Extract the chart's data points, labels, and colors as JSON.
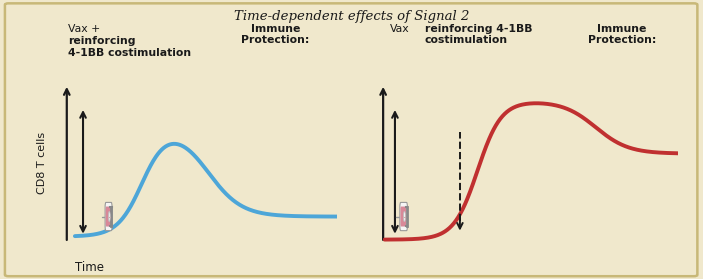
{
  "title": "Time-dependent effects of Signal 2",
  "bg_color": "#f0e8cc",
  "border_color": "#c8b878",
  "blue_color": "#4da6d8",
  "red_color": "#c03030",
  "shield_color": "#5a9e7a",
  "shield_edge": "#3a7a5a",
  "text_color": "#1a1a1a",
  "arrow_color": "#1a1a1a",
  "ylabel": "CD8 T cells",
  "xlabel": "Time"
}
